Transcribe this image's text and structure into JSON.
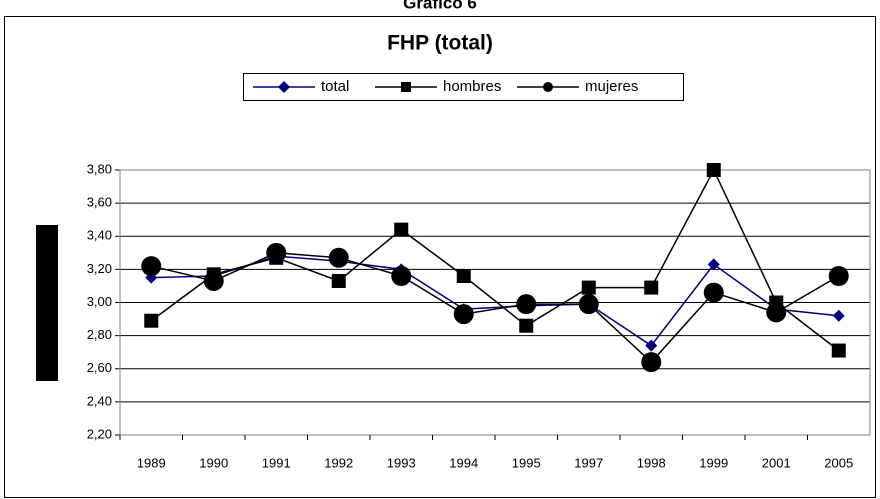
{
  "chart_data": {
    "type": "line",
    "supertitle": "Gráfico 6",
    "title": "FHP (total)",
    "categories": [
      "1989",
      "1990",
      "1991",
      "1992",
      "1993",
      "1994",
      "1995",
      "1997",
      "1998",
      "1999",
      "2001",
      "2005"
    ],
    "series": [
      {
        "name": "total",
        "color": "#000080",
        "marker": "diamond",
        "values": [
          3.15,
          3.16,
          3.28,
          3.25,
          3.2,
          2.96,
          2.98,
          2.99,
          2.74,
          3.23,
          2.96,
          2.92
        ]
      },
      {
        "name": "hombres",
        "color": "#000000",
        "marker": "square",
        "values": [
          2.89,
          3.17,
          3.27,
          3.13,
          3.44,
          3.16,
          2.86,
          3.09,
          3.09,
          3.8,
          3.0,
          2.71
        ]
      },
      {
        "name": "mujeres",
        "color": "#000000",
        "marker": "circle",
        "values": [
          3.22,
          3.13,
          3.3,
          3.27,
          3.16,
          2.93,
          2.99,
          2.99,
          2.64,
          3.06,
          2.94,
          3.16
        ]
      }
    ],
    "ylim": [
      2.2,
      3.8
    ],
    "yticks": [
      {
        "value": 2.2,
        "label": "2,20"
      },
      {
        "value": 2.4,
        "label": "2,40"
      },
      {
        "value": 2.6,
        "label": "2,60"
      },
      {
        "value": 2.8,
        "label": "2,80"
      },
      {
        "value": 3.0,
        "label": "3,00"
      },
      {
        "value": 3.2,
        "label": "3,20"
      },
      {
        "value": 3.4,
        "label": "3,40"
      },
      {
        "value": 3.6,
        "label": "3,60"
      },
      {
        "value": 3.8,
        "label": "3,80"
      }
    ],
    "grid": true
  }
}
